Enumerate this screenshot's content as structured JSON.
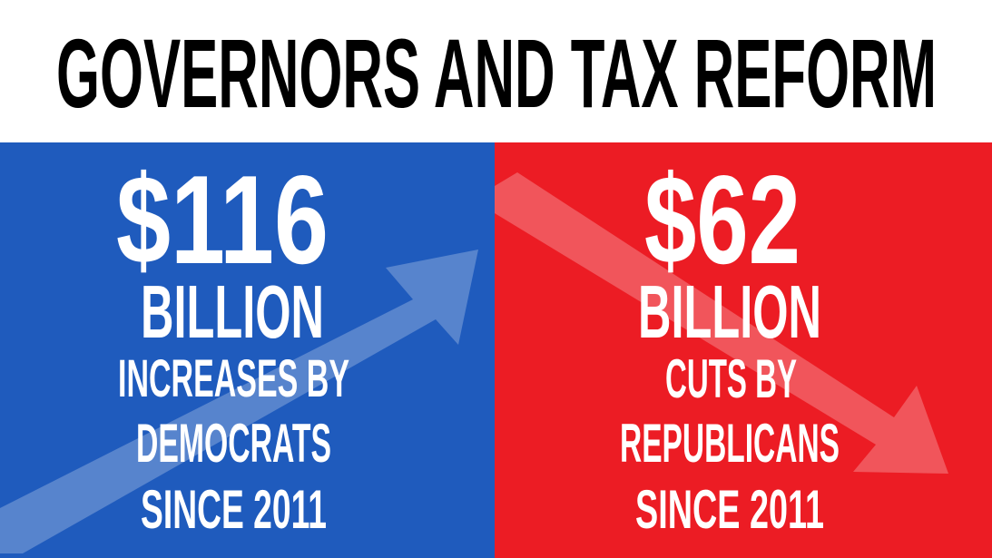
{
  "title": "GOVERNORS AND TAX REFORM",
  "panels": [
    {
      "amount": "$116",
      "unit": "BILLION",
      "lines": [
        "INCREASES BY",
        "DEMOCRATS",
        "SINCE 2011"
      ]
    },
    {
      "amount": "$62",
      "unit": "BILLION",
      "lines": [
        "CUTS BY",
        "REPUBLICANS",
        "SINCE 2011"
      ]
    }
  ]
}
